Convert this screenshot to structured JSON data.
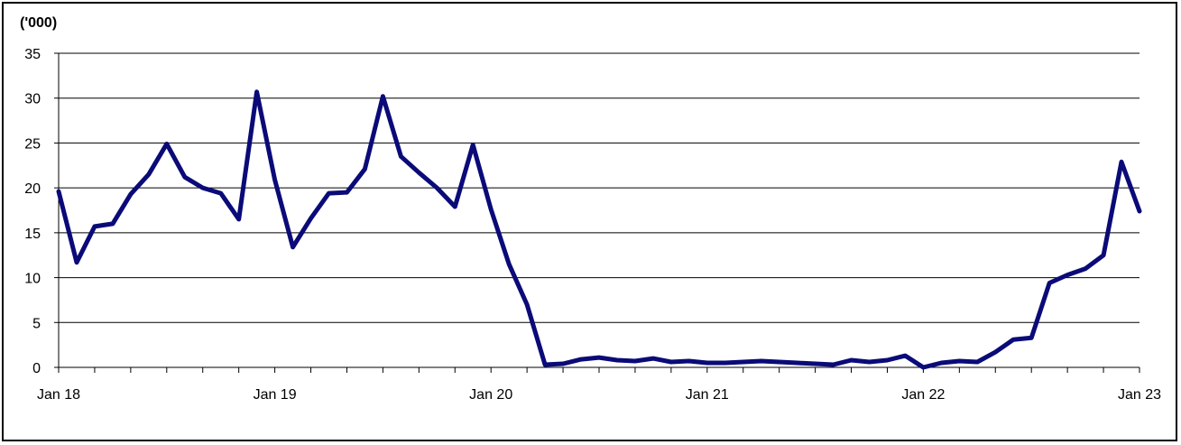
{
  "chart_data": {
    "type": "line",
    "unit_label": "('000)",
    "ylim": [
      0,
      35
    ],
    "y_ticks": [
      "0",
      "5",
      "10",
      "15",
      "20",
      "25",
      "30",
      "35"
    ],
    "x_tick_labels": [
      "Jan 18",
      "Jan 19",
      "Jan 20",
      "Jan 21",
      "Jan 22",
      "Jan 23"
    ],
    "grid": true,
    "line_color": "#0a0a78",
    "series": [
      {
        "x": [
          "2018-01",
          "2018-02",
          "2018-03",
          "2018-04",
          "2018-05",
          "2018-06",
          "2018-07",
          "2018-08",
          "2018-09",
          "2018-10",
          "2018-11",
          "2018-12",
          "2019-01",
          "2019-02",
          "2019-03",
          "2019-04",
          "2019-05",
          "2019-06",
          "2019-07",
          "2019-08",
          "2019-09",
          "2019-10",
          "2019-11",
          "2019-12",
          "2020-01",
          "2020-02",
          "2020-03",
          "2020-04",
          "2020-05",
          "2020-06",
          "2020-07",
          "2020-08",
          "2020-09",
          "2020-10",
          "2020-11",
          "2020-12",
          "2021-01",
          "2021-02",
          "2021-03",
          "2021-04",
          "2021-05",
          "2021-06",
          "2021-07",
          "2021-08",
          "2021-09",
          "2021-10",
          "2021-11",
          "2021-12",
          "2022-01",
          "2022-02",
          "2022-03",
          "2022-04",
          "2022-05",
          "2022-06",
          "2022-07",
          "2022-08",
          "2022-09",
          "2022-10",
          "2022-11",
          "2022-12",
          "2023-01"
        ],
        "values": [
          19.6,
          11.7,
          15.7,
          16.0,
          19.3,
          21.5,
          24.9,
          21.2,
          20.0,
          19.4,
          16.5,
          30.7,
          20.9,
          13.4,
          16.6,
          19.4,
          19.5,
          22.1,
          30.2,
          23.5,
          21.7,
          20.0,
          17.9,
          24.8,
          17.6,
          11.5,
          7.0,
          0.3,
          0.4,
          0.9,
          1.1,
          0.8,
          0.7,
          1.0,
          0.6,
          0.7,
          0.5,
          0.5,
          0.6,
          0.7,
          0.6,
          0.5,
          0.4,
          0.3,
          0.8,
          0.6,
          0.8,
          1.3,
          0.0,
          0.5,
          0.7,
          0.6,
          1.7,
          3.1,
          3.3,
          9.4,
          10.3,
          11.0,
          12.5,
          22.9,
          17.4
        ]
      }
    ]
  }
}
